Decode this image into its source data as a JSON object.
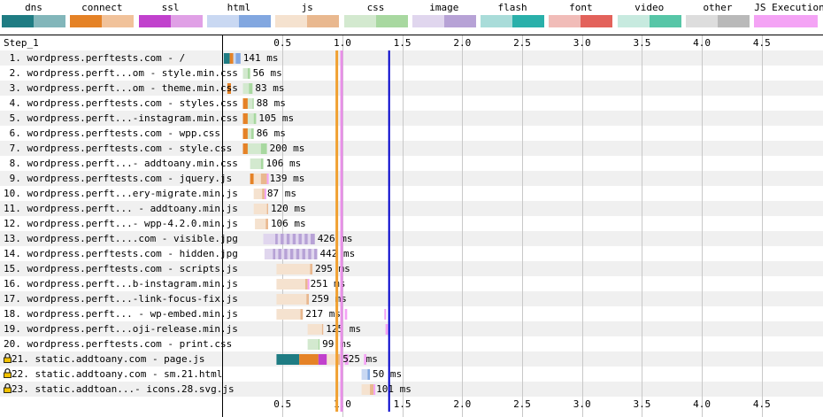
{
  "legend": [
    {
      "name": "dns",
      "colors": [
        "#1f7c83",
        "#82b6ba"
      ],
      "label": "dns"
    },
    {
      "name": "connect",
      "colors": [
        "#e58226",
        "#f1c29a"
      ],
      "label": "connect"
    },
    {
      "name": "ssl",
      "colors": [
        "#c141cd",
        "#e0a0e6"
      ],
      "label": "ssl"
    },
    {
      "name": "html",
      "colors": [
        "#c9d8f2",
        "#82a7e0"
      ],
      "label": "html"
    },
    {
      "name": "js",
      "colors": [
        "#f5e2cf",
        "#e9b88f"
      ],
      "label": "js"
    },
    {
      "name": "css",
      "colors": [
        "#d3e9cf",
        "#a8d8a0"
      ],
      "label": "css"
    },
    {
      "name": "image",
      "colors": [
        "#e0d6ee",
        "#b7a2d6"
      ],
      "label": "image"
    },
    {
      "name": "flash",
      "colors": [
        "#a9dcd9",
        "#2ab0aa"
      ],
      "label": "flash"
    },
    {
      "name": "font",
      "colors": [
        "#f1bcb8",
        "#e3625b"
      ],
      "label": "font"
    },
    {
      "name": "video",
      "colors": [
        "#c7eadf",
        "#57c6a7"
      ],
      "label": "video"
    },
    {
      "name": "other",
      "colors": [
        "#dddddd",
        "#b9b9b9"
      ],
      "label": "other"
    },
    {
      "name": "js-execution",
      "colors": [
        "#f4a3f5",
        "#f4a3f5"
      ],
      "label": "JS Execution"
    }
  ],
  "step_label": "Step_1",
  "chart_data": {
    "type": "waterfall",
    "xlim": [
      0,
      4.8
    ],
    "x_unit": "seconds",
    "ticks": [
      0.5,
      1.0,
      1.5,
      2.0,
      2.5,
      3.0,
      3.5,
      4.0,
      4.5
    ],
    "tick_labels": [
      "0.5",
      "1.0",
      "1.5",
      "2.0",
      "2.5",
      "3.0",
      "3.5",
      "4.0",
      "4.5"
    ],
    "markers": [
      {
        "name": "start-render",
        "time": 0.95,
        "color": "#f0a030"
      },
      {
        "name": "dom-content-loaded",
        "time": 0.99,
        "color": "#e890e8"
      },
      {
        "name": "on-load",
        "time": 1.39,
        "color": "#0000cc"
      }
    ],
    "requests": [
      {
        "label": "1. wordpress.perftests.com - /",
        "secure": false,
        "type": "html",
        "segments": [
          {
            "kind": "dns",
            "start": 0.01,
            "end": 0.06
          },
          {
            "kind": "connect",
            "start": 0.06,
            "end": 0.09
          },
          {
            "kind": "ttfb",
            "start": 0.09,
            "end": 0.11
          },
          {
            "kind": "download",
            "start": 0.11,
            "end": 0.15
          }
        ],
        "duration_label": "141 ms"
      },
      {
        "label": "2. wordpress.perft...om - style.min.css",
        "secure": false,
        "type": "css",
        "segments": [
          {
            "kind": "ttfb",
            "start": 0.17,
            "end": 0.21
          },
          {
            "kind": "download",
            "start": 0.21,
            "end": 0.23
          }
        ],
        "duration_label": "56 ms"
      },
      {
        "label": "3. wordpress.perft...om - theme.min.css",
        "secure": false,
        "type": "css",
        "segments": [
          {
            "kind": "connect",
            "start": 0.04,
            "end": 0.07
          },
          {
            "kind": "ttfb",
            "start": 0.17,
            "end": 0.22
          },
          {
            "kind": "download",
            "start": 0.22,
            "end": 0.25
          }
        ],
        "duration_label": "83 ms"
      },
      {
        "label": "4. wordpress.perftests.com - styles.css",
        "secure": false,
        "type": "css",
        "segments": [
          {
            "kind": "connect",
            "start": 0.17,
            "end": 0.21
          },
          {
            "kind": "ttfb",
            "start": 0.21,
            "end": 0.25
          },
          {
            "kind": "download",
            "start": 0.25,
            "end": 0.26
          }
        ],
        "duration_label": "88 ms"
      },
      {
        "label": "5. wordpress.perft...-instagram.min.css",
        "secure": false,
        "type": "css",
        "segments": [
          {
            "kind": "connect",
            "start": 0.17,
            "end": 0.21
          },
          {
            "kind": "ttfb",
            "start": 0.21,
            "end": 0.26
          },
          {
            "kind": "download",
            "start": 0.26,
            "end": 0.28
          }
        ],
        "duration_label": "105 ms"
      },
      {
        "label": "6. wordpress.perftests.com - wpp.css",
        "secure": false,
        "type": "css",
        "segments": [
          {
            "kind": "connect",
            "start": 0.17,
            "end": 0.21
          },
          {
            "kind": "ttfb",
            "start": 0.21,
            "end": 0.24
          },
          {
            "kind": "download",
            "start": 0.24,
            "end": 0.26
          }
        ],
        "duration_label": "86 ms"
      },
      {
        "label": "7. wordpress.perftests.com - style.css",
        "secure": false,
        "type": "css",
        "segments": [
          {
            "kind": "connect",
            "start": 0.17,
            "end": 0.21
          },
          {
            "kind": "ttfb",
            "start": 0.21,
            "end": 0.32
          },
          {
            "kind": "download",
            "start": 0.32,
            "end": 0.37
          }
        ],
        "duration_label": "200 ms"
      },
      {
        "label": "8. wordpress.perft...- addtoany.min.css",
        "secure": false,
        "type": "css",
        "segments": [
          {
            "kind": "ttfb",
            "start": 0.23,
            "end": 0.32
          },
          {
            "kind": "download",
            "start": 0.32,
            "end": 0.34
          }
        ],
        "duration_label": "106 ms"
      },
      {
        "label": "9. wordpress.perftests.com - jquery.js",
        "secure": false,
        "type": "js",
        "segments": [
          {
            "kind": "connect",
            "start": 0.23,
            "end": 0.26
          },
          {
            "kind": "ttfb",
            "start": 0.26,
            "end": 0.32
          },
          {
            "kind": "download",
            "start": 0.32,
            "end": 0.37
          }
        ],
        "js_exec": [
          {
            "start": 0.37,
            "end": 0.38
          }
        ],
        "duration_label": "139 ms"
      },
      {
        "label": "10. wordpress.perft...ery-migrate.min.js",
        "secure": false,
        "type": "js",
        "segments": [
          {
            "kind": "ttfb",
            "start": 0.26,
            "end": 0.33
          },
          {
            "kind": "download",
            "start": 0.33,
            "end": 0.35
          }
        ],
        "js_exec": [
          {
            "start": 0.35,
            "end": 0.36
          }
        ],
        "duration_label": "87 ms"
      },
      {
        "label": "11. wordpress.perft... - addtoany.min.js",
        "secure": false,
        "type": "js",
        "segments": [
          {
            "kind": "ttfb",
            "start": 0.26,
            "end": 0.37
          },
          {
            "kind": "download",
            "start": 0.37,
            "end": 0.38
          }
        ],
        "duration_label": "120 ms"
      },
      {
        "label": "12. wordpress.perft...- wpp-4.2.0.min.js",
        "secure": false,
        "type": "js",
        "segments": [
          {
            "kind": "ttfb",
            "start": 0.27,
            "end": 0.36
          },
          {
            "kind": "download",
            "start": 0.36,
            "end": 0.38
          }
        ],
        "duration_label": "106 ms"
      },
      {
        "label": "13. wordpress.perft....com - visible.jpg",
        "secure": false,
        "type": "image",
        "segments": [
          {
            "kind": "ttfb",
            "start": 0.34,
            "end": 0.44
          },
          {
            "kind": "download",
            "start": 0.44,
            "end": 0.77
          }
        ],
        "duration_label": "426 ms"
      },
      {
        "label": "14. wordpress.perftests.com - hidden.jpg",
        "secure": false,
        "type": "image",
        "segments": [
          {
            "kind": "ttfb",
            "start": 0.35,
            "end": 0.42
          },
          {
            "kind": "download",
            "start": 0.42,
            "end": 0.79
          }
        ],
        "duration_label": "442 ms"
      },
      {
        "label": "15. wordpress.perftests.com - scripts.js",
        "secure": false,
        "type": "js",
        "segments": [
          {
            "kind": "ttfb",
            "start": 0.45,
            "end": 0.73
          },
          {
            "kind": "download",
            "start": 0.73,
            "end": 0.75
          }
        ],
        "duration_label": "295 ms"
      },
      {
        "label": "16. wordpress.perft...b-instagram.min.js",
        "secure": false,
        "type": "js",
        "segments": [
          {
            "kind": "ttfb",
            "start": 0.45,
            "end": 0.69
          },
          {
            "kind": "download",
            "start": 0.69,
            "end": 0.71
          }
        ],
        "js_exec": [
          {
            "start": 0.71,
            "end": 0.72
          }
        ],
        "duration_label": "251 ms"
      },
      {
        "label": "17. wordpress.perft...-link-focus-fix.js",
        "secure": false,
        "type": "js",
        "segments": [
          {
            "kind": "ttfb",
            "start": 0.45,
            "end": 0.7
          },
          {
            "kind": "download",
            "start": 0.7,
            "end": 0.72
          }
        ],
        "duration_label": "259 ms"
      },
      {
        "label": "18. wordpress.perft... - wp-embed.min.js",
        "secure": false,
        "type": "js",
        "segments": [
          {
            "kind": "ttfb",
            "start": 0.45,
            "end": 0.65
          },
          {
            "kind": "download",
            "start": 0.65,
            "end": 0.67
          }
        ],
        "js_exec": [
          {
            "start": 1.02,
            "end": 1.04
          },
          {
            "start": 1.35,
            "end": 1.36
          }
        ],
        "duration_label": "217 ms"
      },
      {
        "label": "19. wordpress.perft...oji-release.min.js",
        "secure": false,
        "type": "js",
        "segments": [
          {
            "kind": "ttfb",
            "start": 0.71,
            "end": 0.83
          },
          {
            "kind": "download",
            "start": 0.83,
            "end": 0.84
          }
        ],
        "js_exec": [
          {
            "start": 1.36,
            "end": 1.38
          }
        ],
        "duration_label": "125 ms"
      },
      {
        "label": "20. wordpress.perftests.com - print.css",
        "secure": false,
        "type": "css",
        "segments": [
          {
            "kind": "ttfb",
            "start": 0.71,
            "end": 0.8
          },
          {
            "kind": "download",
            "start": 0.8,
            "end": 0.81
          }
        ],
        "duration_label": "99 ms"
      },
      {
        "label": "21. static.addtoany.com - page.js",
        "secure": true,
        "type": "js",
        "segments": [
          {
            "kind": "dns",
            "start": 0.45,
            "end": 0.64
          },
          {
            "kind": "connect",
            "start": 0.64,
            "end": 0.8
          },
          {
            "kind": "ssl",
            "start": 0.8,
            "end": 0.87
          },
          {
            "kind": "ttfb",
            "start": 0.87,
            "end": 0.95
          },
          {
            "kind": "download",
            "start": 0.95,
            "end": 0.98
          }
        ],
        "js_exec": [
          {
            "start": 1.02,
            "end": 1.05
          },
          {
            "start": 1.18,
            "end": 1.2
          }
        ],
        "duration_label": "525 ms"
      },
      {
        "label": "22. static.addtoany.com - sm.21.html",
        "secure": true,
        "type": "html",
        "segments": [
          {
            "kind": "ttfb",
            "start": 1.16,
            "end": 1.21
          },
          {
            "kind": "download",
            "start": 1.21,
            "end": 1.23
          }
        ],
        "duration_label": "50 ms"
      },
      {
        "label": "23. static.addtoan...- icons.28.svg.js",
        "secure": true,
        "type": "js",
        "segments": [
          {
            "kind": "ttfb",
            "start": 1.16,
            "end": 1.23
          },
          {
            "kind": "download",
            "start": 1.23,
            "end": 1.26
          }
        ],
        "js_exec": [
          {
            "start": 1.26,
            "end": 1.27
          }
        ],
        "duration_label": "101 ms"
      }
    ]
  }
}
